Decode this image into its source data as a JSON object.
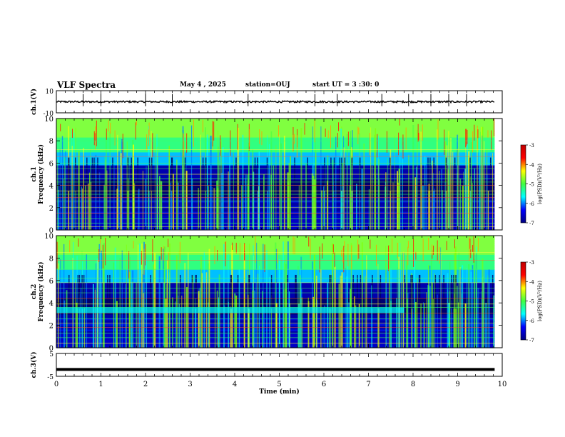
{
  "header": {
    "title": "VLF Spectra",
    "date": "May 4 , 2025",
    "station": "station=OUJ",
    "start_time": "start UT = 3 :30: 0"
  },
  "chart_data": [
    {
      "type": "line",
      "panel": "ch1-waveform",
      "ylabel": "ch.1(V)",
      "ylim": [
        -10,
        10
      ],
      "tick_labels": [
        "10",
        "-10"
      ],
      "baseline": 0,
      "spikes_min": [
        0.6,
        1.0,
        2.0,
        2.6,
        4.3,
        5.8,
        6.3,
        7.3,
        7.9,
        8.4,
        8.8,
        9.2
      ]
    },
    {
      "type": "heatmap",
      "panel": "ch1-spectrogram",
      "ylabel": "ch.1 Frequency (kHz)",
      "ylim": [
        0,
        10
      ],
      "y_ticks": [
        "0",
        "2",
        "4",
        "6",
        "8",
        "10"
      ],
      "colorbar": {
        "label": "log(PSD)(V²/Hz)",
        "range": [
          -7,
          -3
        ],
        "ticks": [
          "-3",
          "-4",
          "-5",
          "-6",
          "-7"
        ]
      }
    },
    {
      "type": "heatmap",
      "panel": "ch2-spectrogram",
      "ylabel": "ch.2 Frequency (kHz)",
      "ylim": [
        0,
        10
      ],
      "y_ticks": [
        "0",
        "2",
        "4",
        "6",
        "8",
        "10"
      ],
      "colorbar": {
        "label": "log(PSD)(V²/Hz)",
        "range": [
          -7,
          -3
        ],
        "ticks": [
          "-3",
          "-4",
          "-5",
          "-6",
          "-7"
        ]
      }
    },
    {
      "type": "line",
      "panel": "ch3-waveform",
      "ylabel": "ch.3(V)",
      "ylim": [
        -5,
        5
      ],
      "tick_labels": [
        "5",
        "-5"
      ],
      "level": -2
    }
  ],
  "xaxis": {
    "label": "Time (min)",
    "range": [
      0,
      10
    ],
    "ticks": [
      "0",
      "1",
      "2",
      "3",
      "4",
      "5",
      "6",
      "7",
      "8",
      "9",
      "10"
    ],
    "data_end": 9.83
  },
  "colors": {
    "background": "#ffffff",
    "axis": "#000000",
    "colormap": [
      "#000080",
      "#0000ff",
      "#00ffff",
      "#40ff40",
      "#ffff00",
      "#ff0000",
      "#c00000"
    ]
  }
}
